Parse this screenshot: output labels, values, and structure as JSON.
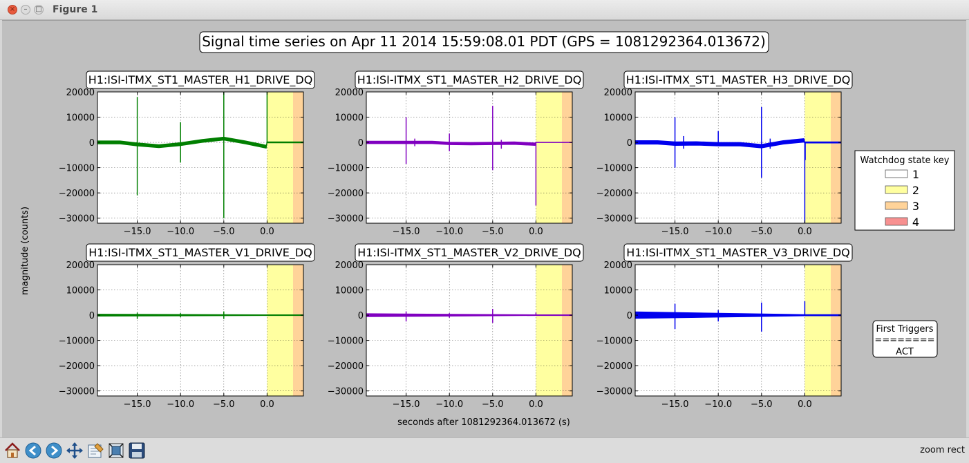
{
  "window": {
    "title": "Figure 1"
  },
  "toolbar": {
    "buttons": [
      "home-icon",
      "back-icon",
      "forward-icon",
      "pan-icon",
      "configure-icon",
      "zoom-to-rect-icon",
      "save-icon"
    ],
    "status": "zoom rect"
  },
  "colors": {
    "state1": "#ffffff",
    "state2": "#ffffa0",
    "state3": "#ffd399",
    "state4": "#f79090",
    "green": "#007f00",
    "purple": "#8000c0",
    "blue": "#0000ee"
  },
  "chart_data": {
    "type": "line",
    "title": "Signal time series on Apr 11 2014 15:59:08.01 PDT (GPS = 1081292364.013672)",
    "xlabel": "seconds after 1081292364.013672 (s)",
    "ylabel": "magnitude (counts)",
    "xlim": [
      -19.6,
      4.2
    ],
    "ylim": [
      -32000,
      20000
    ],
    "xticks": [
      -15.0,
      -10.0,
      -5.0,
      0.0
    ],
    "xtick_labels": [
      "−15.0",
      "−10.0",
      "−5.0",
      "0.0"
    ],
    "yticks": [
      20000,
      10000,
      0,
      -10000,
      -20000,
      -30000
    ],
    "ytick_labels": [
      "20000",
      "10000",
      "0",
      "−10000",
      "−20000",
      "−30000"
    ],
    "grid": true,
    "state_spans": [
      {
        "state": 2,
        "x_start": 0.0,
        "x_end": 3.0
      },
      {
        "state": 3,
        "x_start": 3.0,
        "x_end": 4.2
      }
    ],
    "legend": {
      "title": "Watchdog state key",
      "placement": "right",
      "entries": [
        {
          "label": "1",
          "color": "#ffffff"
        },
        {
          "label": "2",
          "color": "#ffffa0"
        },
        {
          "label": "3",
          "color": "#ffd399"
        },
        {
          "label": "4",
          "color": "#f79090"
        }
      ]
    },
    "triggers_box": {
      "title": "First Triggers",
      "separator": "========",
      "value": "ACT"
    },
    "panels": [
      {
        "name": "H1:ISI-ITMX_ST1_MASTER_H1_DRIVE_DQ",
        "color": "#007f00",
        "baseline": [
          [
            -19.6,
            0
          ],
          [
            -17,
            0
          ],
          [
            -15,
            -800
          ],
          [
            -12.5,
            -1500
          ],
          [
            -10,
            -700
          ],
          [
            -7.5,
            600
          ],
          [
            -5,
            1500
          ],
          [
            -2.5,
            0
          ],
          [
            -0.1,
            -1700
          ],
          [
            0,
            0
          ],
          [
            4.2,
            0
          ]
        ],
        "band": 600,
        "post_band": 200,
        "spikes": [
          [
            -15,
            18000,
            -21000
          ],
          [
            -10,
            8000,
            -8000
          ],
          [
            -5,
            20000,
            -30000
          ],
          [
            0,
            20000,
            0
          ]
        ]
      },
      {
        "name": "H1:ISI-ITMX_ST1_MASTER_H2_DRIVE_DQ",
        "color": "#8000c0",
        "baseline": [
          [
            -19.6,
            0
          ],
          [
            -15,
            0
          ],
          [
            -12,
            0
          ],
          [
            -10,
            -400
          ],
          [
            -7.5,
            -500
          ],
          [
            -5,
            -400
          ],
          [
            -2.5,
            -300
          ],
          [
            -0.1,
            -700
          ],
          [
            0,
            0
          ],
          [
            4.2,
            0
          ]
        ],
        "band": 500,
        "post_band": 100,
        "spikes": [
          [
            -15,
            10000,
            -8500
          ],
          [
            -14,
            1500,
            -1500
          ],
          [
            -10,
            3500,
            -3500
          ],
          [
            -5,
            14500,
            -11000
          ],
          [
            -4,
            1000,
            -2500
          ],
          [
            0,
            0,
            -25000
          ]
        ]
      },
      {
        "name": "H1:ISI-ITMX_ST1_MASTER_H3_DRIVE_DQ",
        "color": "#0000ee",
        "baseline": [
          [
            -19.6,
            0
          ],
          [
            -17,
            0
          ],
          [
            -15,
            -500
          ],
          [
            -12.5,
            -400
          ],
          [
            -10,
            -700
          ],
          [
            -7.5,
            -700
          ],
          [
            -5,
            -1500
          ],
          [
            -2.5,
            0
          ],
          [
            -0.1,
            800
          ],
          [
            0,
            0
          ],
          [
            4.2,
            0
          ]
        ],
        "band": 700,
        "post_band": 250,
        "spikes": [
          [
            -15,
            10000,
            -10000
          ],
          [
            -14,
            2500,
            -2500
          ],
          [
            -10,
            4500,
            -1500
          ],
          [
            -5,
            14000,
            -14000
          ],
          [
            -4,
            1500,
            -2500
          ],
          [
            0,
            0,
            -33000
          ],
          [
            0.05,
            0,
            -7000
          ]
        ]
      },
      {
        "name": "H1:ISI-ITMX_ST1_MASTER_V1_DRIVE_DQ",
        "color": "#007f00",
        "baseline": [
          [
            -19.6,
            0
          ],
          [
            0,
            0
          ],
          [
            4.2,
            0
          ]
        ],
        "band": 400,
        "post_band": 150,
        "spikes": [
          [
            -15,
            1000,
            -1500
          ],
          [
            -10,
            800,
            -800
          ],
          [
            -5,
            1500,
            -1500
          ]
        ]
      },
      {
        "name": "H1:ISI-ITMX_ST1_MASTER_V2_DRIVE_DQ",
        "color": "#8000c0",
        "baseline": [
          [
            -19.6,
            0
          ],
          [
            0,
            0
          ],
          [
            4.2,
            0
          ]
        ],
        "band": 600,
        "post_band": 150,
        "spikes": [
          [
            -15,
            1500,
            -2500
          ],
          [
            -10,
            800,
            -1000
          ],
          [
            -5,
            2500,
            -3000
          ],
          [
            0,
            1000,
            0
          ]
        ]
      },
      {
        "name": "H1:ISI-ITMX_ST1_MASTER_V3_DRIVE_DQ",
        "color": "#0000ee",
        "baseline": [
          [
            -19.6,
            0
          ],
          [
            0,
            0
          ],
          [
            4.2,
            0
          ]
        ],
        "band": 1300,
        "post_band": 250,
        "spikes": [
          [
            -15,
            4500,
            -5500
          ],
          [
            -10,
            2000,
            -2500
          ],
          [
            -5,
            5000,
            -6500
          ],
          [
            0,
            5500,
            0
          ]
        ]
      }
    ]
  }
}
